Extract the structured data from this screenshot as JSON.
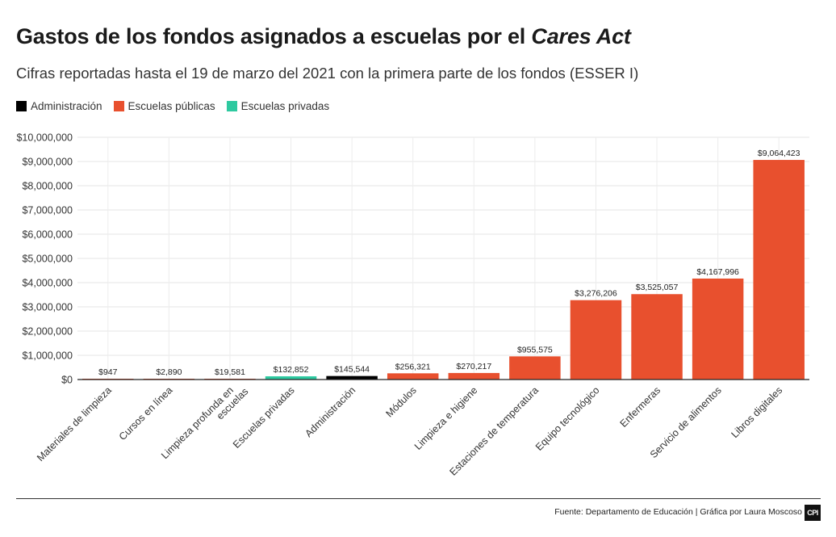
{
  "header": {
    "title_main": "Gastos de los fondos asignados a escuelas por el",
    "title_emph": "Cares Act",
    "subtitle": "Cifras reportadas hasta el 19 de marzo del 2021 con la primera parte de los fondos (ESSER I)"
  },
  "legend": [
    {
      "label": "Administración",
      "color": "#000000"
    },
    {
      "label": "Escuelas públicas",
      "color": "#e8502e"
    },
    {
      "label": "Escuelas privadas",
      "color": "#2ec9a0"
    }
  ],
  "footer": {
    "source": "Fuente: Departamento de Educación | Gráfica por Laura Moscoso",
    "logo": "CPI"
  },
  "chart_data": {
    "type": "bar",
    "title": "Gastos de los fondos asignados a escuelas por el Cares Act",
    "xlabel": "",
    "ylabel": "",
    "ylim": [
      0,
      10000000
    ],
    "yticks": [
      0,
      1000000,
      2000000,
      3000000,
      4000000,
      5000000,
      6000000,
      7000000,
      8000000,
      9000000,
      10000000
    ],
    "ytick_labels": [
      "$0",
      "$1,000,000",
      "$2,000,000",
      "$3,000,000",
      "$4,000,000",
      "$5,000,000",
      "$6,000,000",
      "$7,000,000",
      "$8,000,000",
      "$9,000,000",
      "$10,000,000"
    ],
    "grid": true,
    "categories": [
      "Materiales de limpieza",
      "Cursos en línea",
      "Limpieza profunda en escuelas",
      "Escuelas privadas",
      "Administración",
      "Módulos",
      "Limpieza e higiene",
      "Estaciones de temperatura",
      "Equipo tecnológico",
      "Enfermeras",
      "Servicio de alimentos",
      "Libros digitales"
    ],
    "category_lines": [
      [
        "Materiales de limpieza"
      ],
      [
        "Cursos en línea"
      ],
      [
        "Limpieza profunda en",
        "escuelas"
      ],
      [
        "Escuelas privadas"
      ],
      [
        "Administración"
      ],
      [
        "Módulos"
      ],
      [
        "Limpieza e higiene"
      ],
      [
        "Estaciones de temperatura"
      ],
      [
        "Equipo tecnológico"
      ],
      [
        "Enfermeras"
      ],
      [
        "Servicio de alimentos"
      ],
      [
        "Libros digitales"
      ]
    ],
    "values": [
      947,
      2890,
      19581,
      132852,
      145544,
      256321,
      270217,
      955575,
      3276206,
      3525057,
      4167996,
      9064423
    ],
    "value_labels": [
      "$947",
      "$2,890",
      "$19,581",
      "$132,852",
      "$145,544",
      "$256,321",
      "$270,217",
      "$955,575",
      "$3,276,206",
      "$3,525,057",
      "$4,167,996",
      "$9,064,423"
    ],
    "groups": [
      "Escuelas públicas",
      "Escuelas públicas",
      "Escuelas públicas",
      "Escuelas privadas",
      "Administración",
      "Escuelas públicas",
      "Escuelas públicas",
      "Escuelas públicas",
      "Escuelas públicas",
      "Escuelas públicas",
      "Escuelas públicas",
      "Escuelas públicas"
    ]
  }
}
